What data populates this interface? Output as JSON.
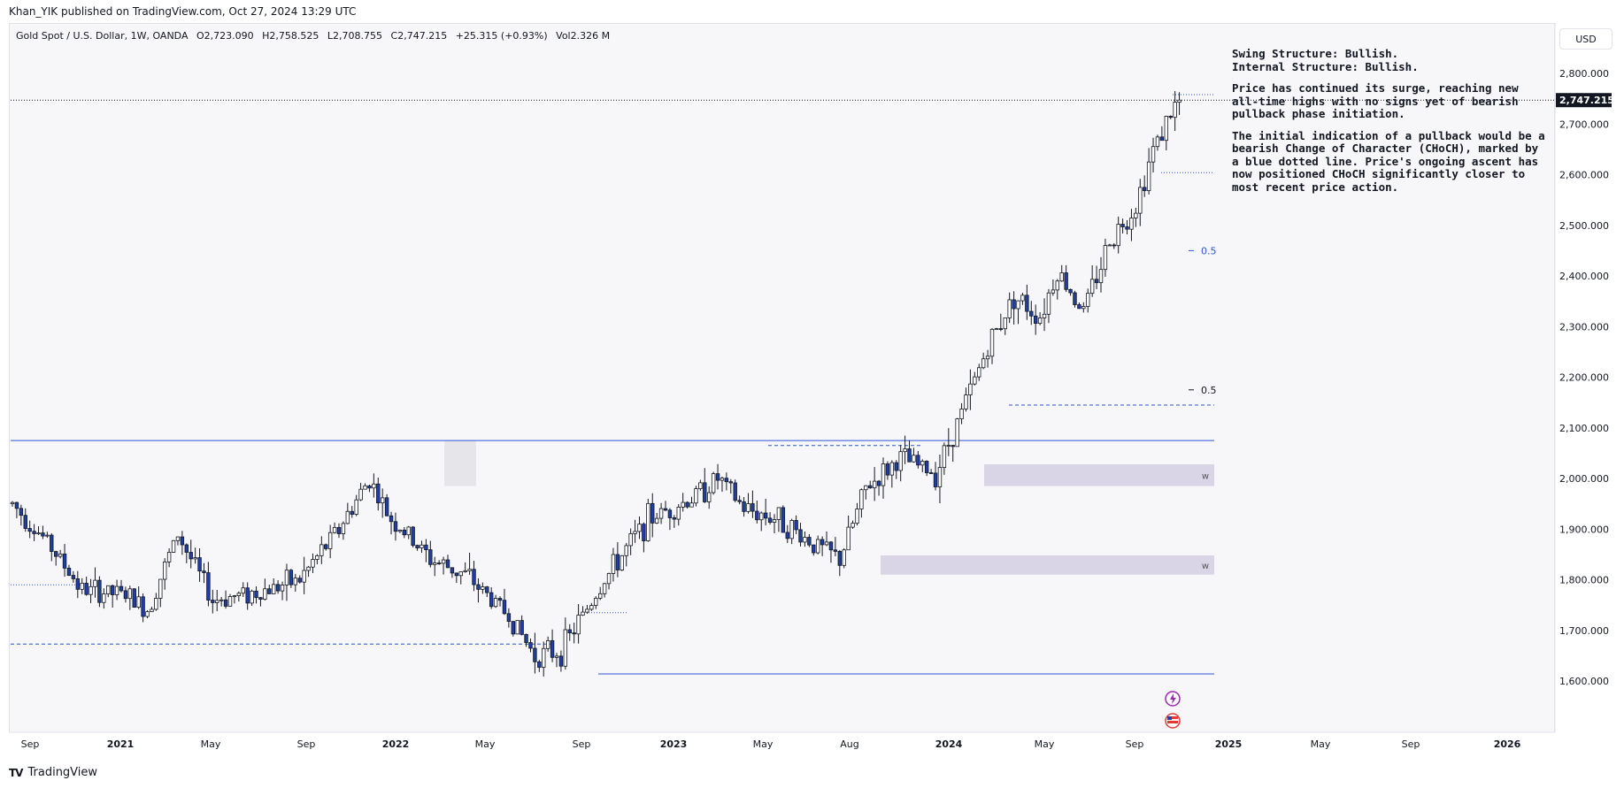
{
  "header": {
    "published_line": "Khan_YIK published on TradingView.com, Oct 27, 2024 13:29 UTC"
  },
  "legend": {
    "symbol": "Gold Spot / U.S. Dollar, 1W, OANDA",
    "open": "O2,723.090",
    "high": "H2,758.525",
    "low": "L2,708.755",
    "close": "C2,747.215",
    "change": "+25.315 (+0.93%)",
    "volume": "Vol2.326 M"
  },
  "currency_button": "USD",
  "annotation": {
    "line1": "Swing Structure: Bullish.",
    "line2": "Internal Structure: Bullish.",
    "para1": "Price has continued its surge, reaching new all-time highs with no signs yet of bearish pullback phase initiation.",
    "para2": "The initial indication of a pullback would be a bearish Change of Character (CHoCH), marked by a blue dotted line. Price's ongoing ascent has now positioned CHoCH significantly closer to most recent price action."
  },
  "footer": {
    "brand": "TradingView"
  },
  "colors": {
    "bull_candle": "#ffffff",
    "bear_candle": "#1e3fa8",
    "wick": "#131722",
    "structure_line": "#2c57d6",
    "zone_fill": "#d9d4e6",
    "price_tag": "#131722"
  },
  "chart_data": {
    "type": "candlestick",
    "title": "Gold Spot / U.S. Dollar, 1W, OANDA",
    "x_ticks": [
      "Sep",
      "2021",
      "May",
      "Sep",
      "2022",
      "May",
      "Sep",
      "2023",
      "May",
      "Aug",
      "2024",
      "May",
      "Sep",
      "2025",
      "May",
      "Sep",
      "2026"
    ],
    "y_ticks": [
      "2,800.000",
      "2,700.000",
      "2,600.000",
      "2,500.000",
      "2,400.000",
      "2,300.000",
      "2,200.000",
      "2,100.000",
      "2,000.000",
      "1,900.000",
      "1,800.000",
      "1,700.000",
      "1,600.000"
    ],
    "ylim": [
      1550,
      2860
    ],
    "last_price_label": "2,747.215",
    "last_price": 2747.215,
    "fib_labels": [
      "0.5",
      "0.5"
    ],
    "zone_labels": [
      "w",
      "w"
    ],
    "key_levels": [
      {
        "name": "range-high",
        "value": 2075
      },
      {
        "name": "range-low",
        "value": 1614
      },
      {
        "name": "swing-low-dashed",
        "value": 1673
      },
      {
        "name": "choch-internal",
        "value": 2604
      },
      {
        "name": "bos-dashed",
        "value": 2145
      },
      {
        "name": "ath-line",
        "value": 2758
      }
    ],
    "zones": [
      {
        "top": 2028,
        "bottom": 1985
      },
      {
        "top": 1848,
        "bottom": 1810
      }
    ],
    "weekly_close_path": [
      {
        "week": 0,
        "close": 1950
      },
      {
        "week": 8,
        "close": 1875
      },
      {
        "week": 16,
        "close": 1780
      },
      {
        "week": 26,
        "close": 1770
      },
      {
        "week": 31,
        "close": 1740
      },
      {
        "week": 38,
        "close": 1890
      },
      {
        "week": 46,
        "close": 1760
      },
      {
        "week": 56,
        "close": 1775
      },
      {
        "week": 66,
        "close": 1800
      },
      {
        "week": 75,
        "close": 1900
      },
      {
        "week": 82,
        "close": 2000
      },
      {
        "week": 86,
        "close": 1930
      },
      {
        "week": 96,
        "close": 1840
      },
      {
        "week": 104,
        "close": 1810
      },
      {
        "week": 114,
        "close": 1730
      },
      {
        "week": 120,
        "close": 1650
      },
      {
        "week": 126,
        "close": 1660
      },
      {
        "week": 136,
        "close": 1800
      },
      {
        "week": 146,
        "close": 1920
      },
      {
        "week": 156,
        "close": 1960
      },
      {
        "week": 162,
        "close": 2000
      },
      {
        "week": 168,
        "close": 1940
      },
      {
        "week": 176,
        "close": 1920
      },
      {
        "week": 184,
        "close": 1870
      },
      {
        "week": 190,
        "close": 1840
      },
      {
        "week": 196,
        "close": 1980
      },
      {
        "week": 204,
        "close": 2040
      },
      {
        "week": 212,
        "close": 2010
      },
      {
        "week": 218,
        "close": 2130
      },
      {
        "week": 224,
        "close": 2260
      },
      {
        "week": 230,
        "close": 2360
      },
      {
        "week": 236,
        "close": 2320
      },
      {
        "week": 240,
        "close": 2410
      },
      {
        "week": 246,
        "close": 2330
      },
      {
        "week": 252,
        "close": 2470
      },
      {
        "week": 258,
        "close": 2540
      },
      {
        "week": 262,
        "close": 2650
      },
      {
        "week": 266,
        "close": 2720
      },
      {
        "week": 268,
        "close": 2747
      }
    ]
  }
}
